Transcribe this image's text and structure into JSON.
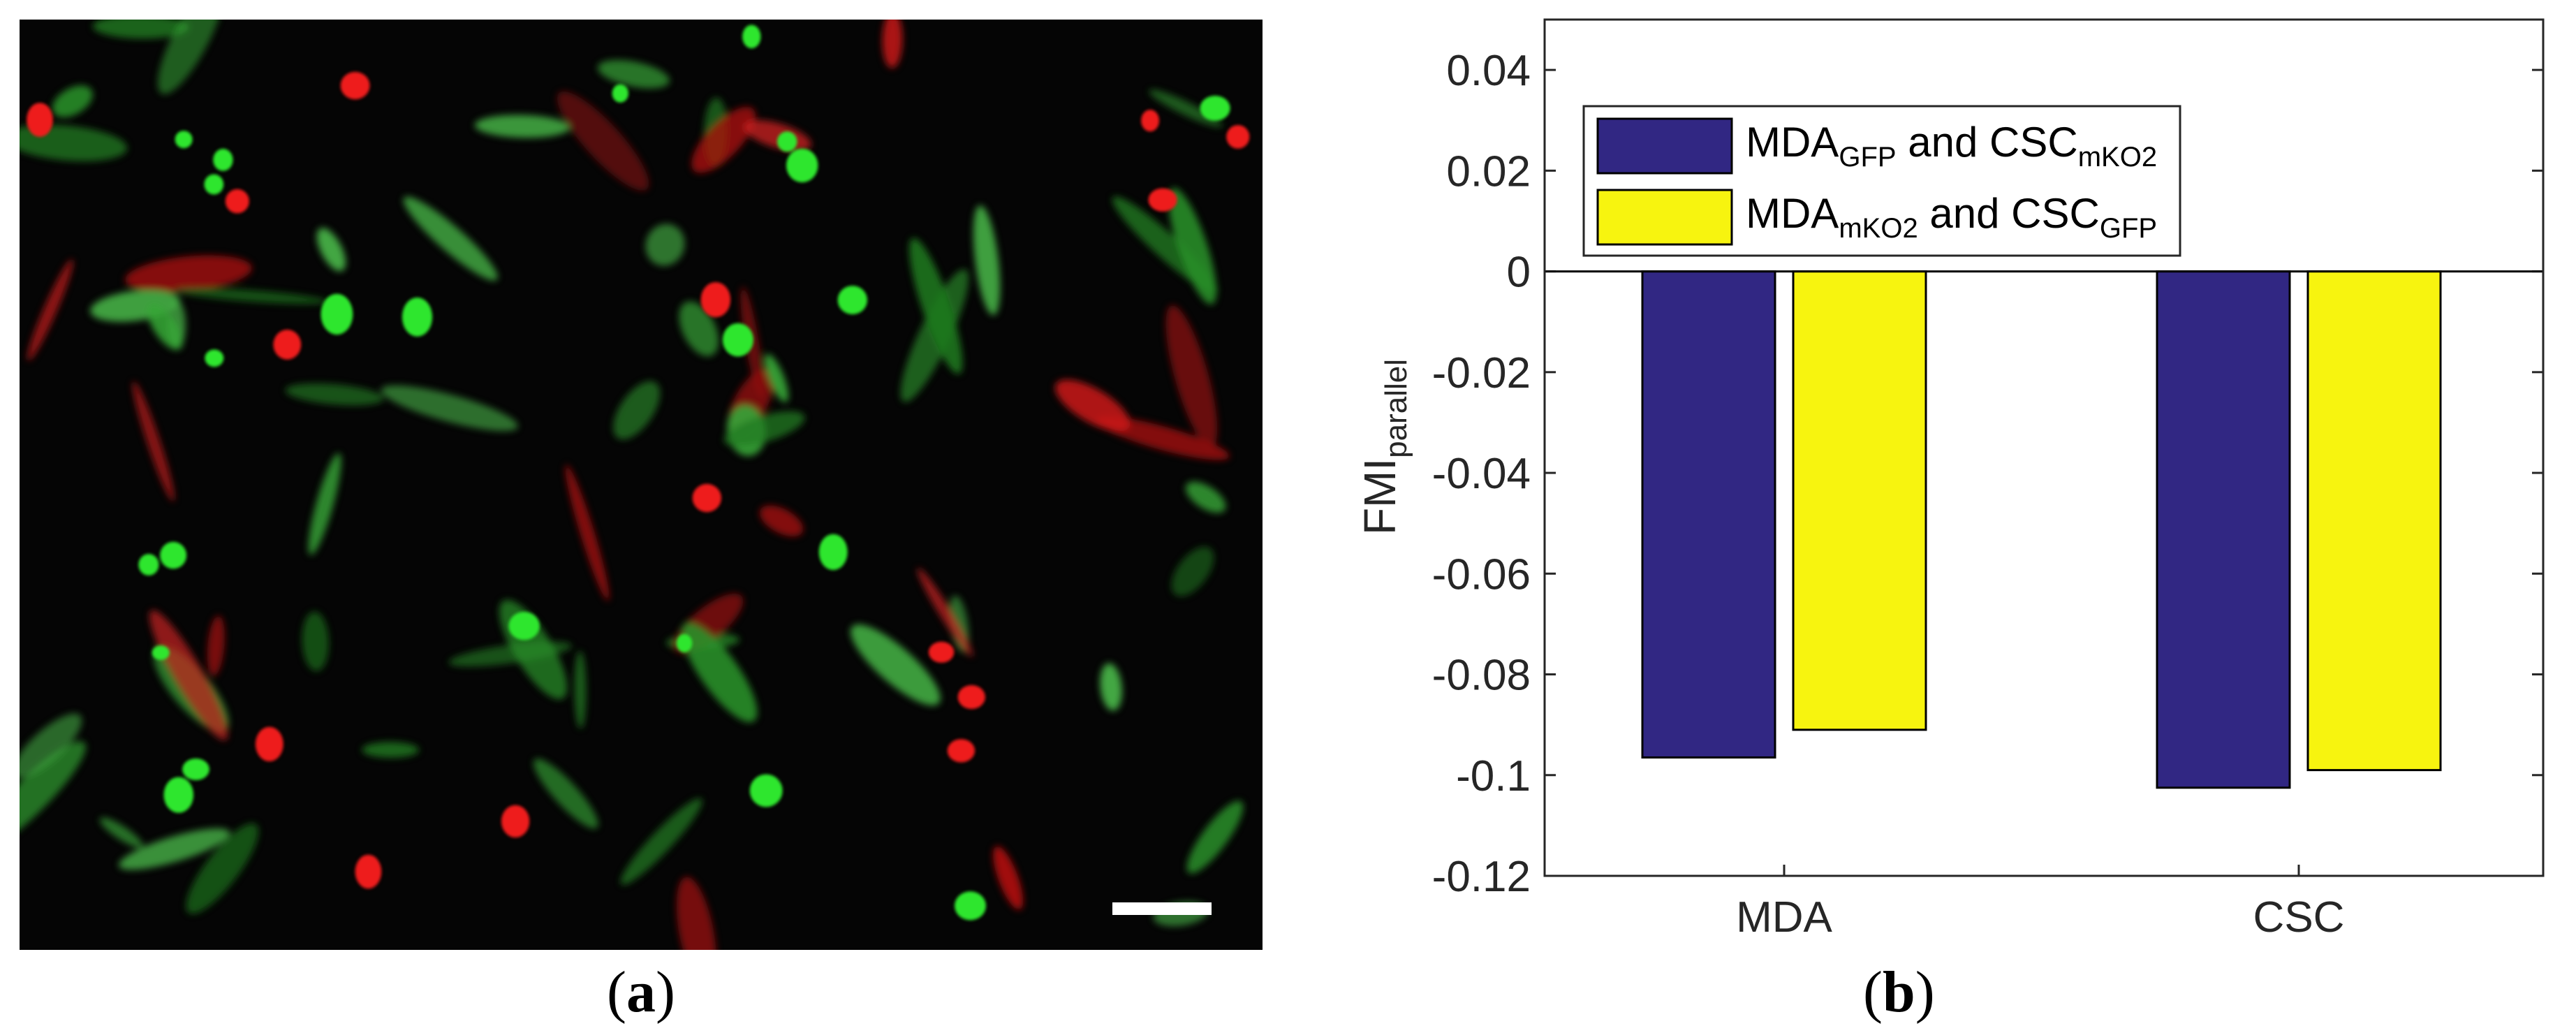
{
  "figure": {
    "panel_a": {
      "label_open": "(",
      "label_letter": "a",
      "label_close": ")"
    },
    "panel_b": {
      "label_open": "(",
      "label_letter": "b",
      "label_close": ")"
    }
  },
  "chart_data": {
    "type": "bar",
    "title": "",
    "xlabel": "",
    "ylabel_main": "FMI",
    "ylabel_sub": "parallel",
    "categories": [
      "MDA",
      "CSC"
    ],
    "ylim": [
      -0.12,
      0.05
    ],
    "yticks": [
      -0.12,
      -0.1,
      -0.08,
      -0.06,
      -0.04,
      -0.02,
      0,
      0.02,
      0.04
    ],
    "ytick_labels": [
      "-0.12",
      "-0.1",
      "-0.08",
      "-0.06",
      "-0.04",
      "-0.02",
      "0",
      "0.02",
      "0.04"
    ],
    "grid": false,
    "legend_position": "top-left",
    "series": [
      {
        "name": "MDA_GFP and CSC_mKO2",
        "legend": {
          "a": "MDA",
          "a_sub": "GFP",
          "mid": " and CSC",
          "b_sub": "mKO2"
        },
        "color": "#312783",
        "values": [
          -0.0965,
          -0.1025
        ]
      },
      {
        "name": "MDA_mKO2 and CSC_GFP",
        "legend": {
          "a": "MDA",
          "a_sub": "mKO2",
          "mid": " and CSC",
          "b_sub": "GFP"
        },
        "color": "#f7f40f",
        "values": [
          -0.091,
          -0.099
        ]
      }
    ]
  }
}
